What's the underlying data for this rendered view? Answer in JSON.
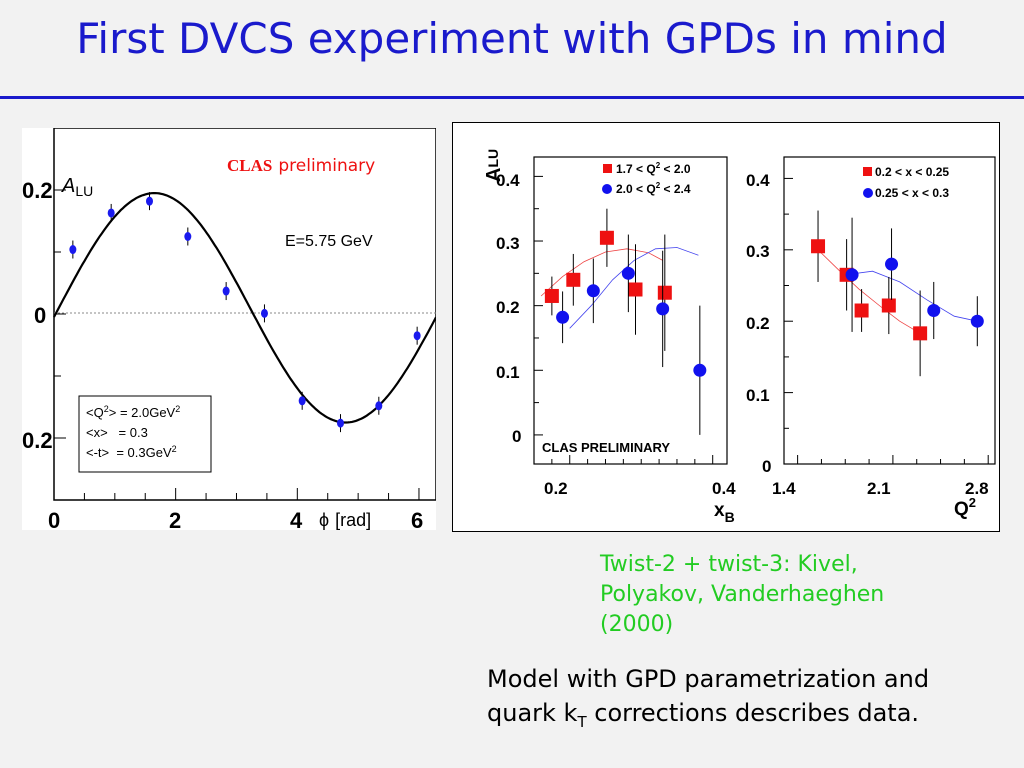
{
  "slide": {
    "title": "First DVCS experiment with GPDs in mind",
    "twist_text": "Twist-2 + twist-3: Kivel, Polyakov, Vanderhaeghen (2000)",
    "model_text_1": "Model with GPD parametrization and",
    "model_text_2": "quark k",
    "model_text_sub": "T",
    "model_text_3": " corrections describes data."
  },
  "chart_data": [
    {
      "type": "scatter",
      "ylabel": "A",
      "ylabel_sub": "LU",
      "xlabel_symbol": "ϕ",
      "xlabel_unit": "[rad]",
      "xlim": [
        0,
        6.28
      ],
      "ylim": [
        -0.3,
        0.3
      ],
      "y_ticks": [
        "0.2",
        "0",
        "0.2"
      ],
      "x_ticks": [
        "0",
        "2",
        "4",
        "6"
      ],
      "label_clas": "CLAS",
      "label_prelim": "preliminary",
      "energy": "E=5.75 GeV",
      "kinematics": {
        "q2": {
          "lhs_a": "<Q",
          "lhs_sup": "2",
          "lhs_b": "> = 2.0GeV",
          "rhs_sup": "2"
        },
        "x": {
          "lhs": "<x>   = 0.3"
        },
        "t": {
          "lhs": "<-t>  = 0.3GeV",
          "rhs_sup": "2"
        }
      },
      "points": {
        "x": [
          0.31,
          0.94,
          1.57,
          2.2,
          2.83,
          3.46,
          4.08,
          4.71,
          5.34,
          5.97
        ],
        "y": [
          0.104,
          0.163,
          0.182,
          0.125,
          0.037,
          0.001,
          -0.14,
          -0.176,
          -0.148,
          -0.035
        ]
      },
      "grid": false
    },
    {
      "type": "scatter",
      "ylabel": "A",
      "ylabel_sub": "LU",
      "xlabel": "x",
      "xlabel_sub": "B",
      "xlim": [
        0.15,
        0.42
      ],
      "ylim": [
        -0.045,
        0.43
      ],
      "y_ticks": [
        0,
        0.1,
        0.2,
        0.3,
        0.4
      ],
      "x_ticks": [
        "0.2",
        "0.4"
      ],
      "annotation": "CLAS PRELIMINARY",
      "legend_placement": "top-right",
      "series": [
        {
          "name_a": "1.7 < Q",
          "name_sup": "2",
          "name_b": " < 2.0",
          "color": "#ee1111",
          "marker": "square",
          "x": [
            0.175,
            0.205,
            0.252,
            0.292,
            0.333
          ],
          "y": [
            0.215,
            0.24,
            0.305,
            0.225,
            0.22
          ],
          "err": [
            0.03,
            0.04,
            0.045,
            0.07,
            0.09
          ]
        },
        {
          "name_a": "2.0 < Q",
          "name_sup": "2",
          "name_b": " < 2.4",
          "color": "#1111ee",
          "marker": "circle",
          "x": [
            0.19,
            0.233,
            0.282,
            0.33,
            0.382
          ],
          "y": [
            0.182,
            0.223,
            0.25,
            0.195,
            0.1
          ],
          "err": [
            0.04,
            0.05,
            0.06,
            0.09,
            0.1
          ]
        }
      ],
      "grid": false
    },
    {
      "type": "scatter",
      "xlabel": "Q",
      "xlabel_sup": "2",
      "xlim": [
        1.3,
        2.85
      ],
      "ylim": [
        0,
        0.43
      ],
      "y_ticks": [
        0,
        0.1,
        0.2,
        0.3,
        0.4
      ],
      "x_ticks": [
        "1.4",
        "2.1",
        "2.8"
      ],
      "legend_placement": "top-right",
      "series": [
        {
          "name": "0.2 < x < 0.25",
          "color": "#ee1111",
          "marker": "square",
          "x": [
            1.55,
            1.76,
            1.87,
            2.07,
            2.3
          ],
          "y": [
            0.305,
            0.265,
            0.215,
            0.222,
            0.183
          ],
          "err": [
            0.05,
            0.05,
            0.03,
            0.04,
            0.06
          ]
        },
        {
          "name": "0.25 < x < 0.3",
          "color": "#1111ee",
          "marker": "circle",
          "x": [
            1.8,
            2.09,
            2.4,
            2.72
          ],
          "y": [
            0.265,
            0.28,
            0.215,
            0.2
          ],
          "err": [
            0.08,
            0.05,
            0.04,
            0.035
          ]
        }
      ],
      "grid": false
    }
  ]
}
